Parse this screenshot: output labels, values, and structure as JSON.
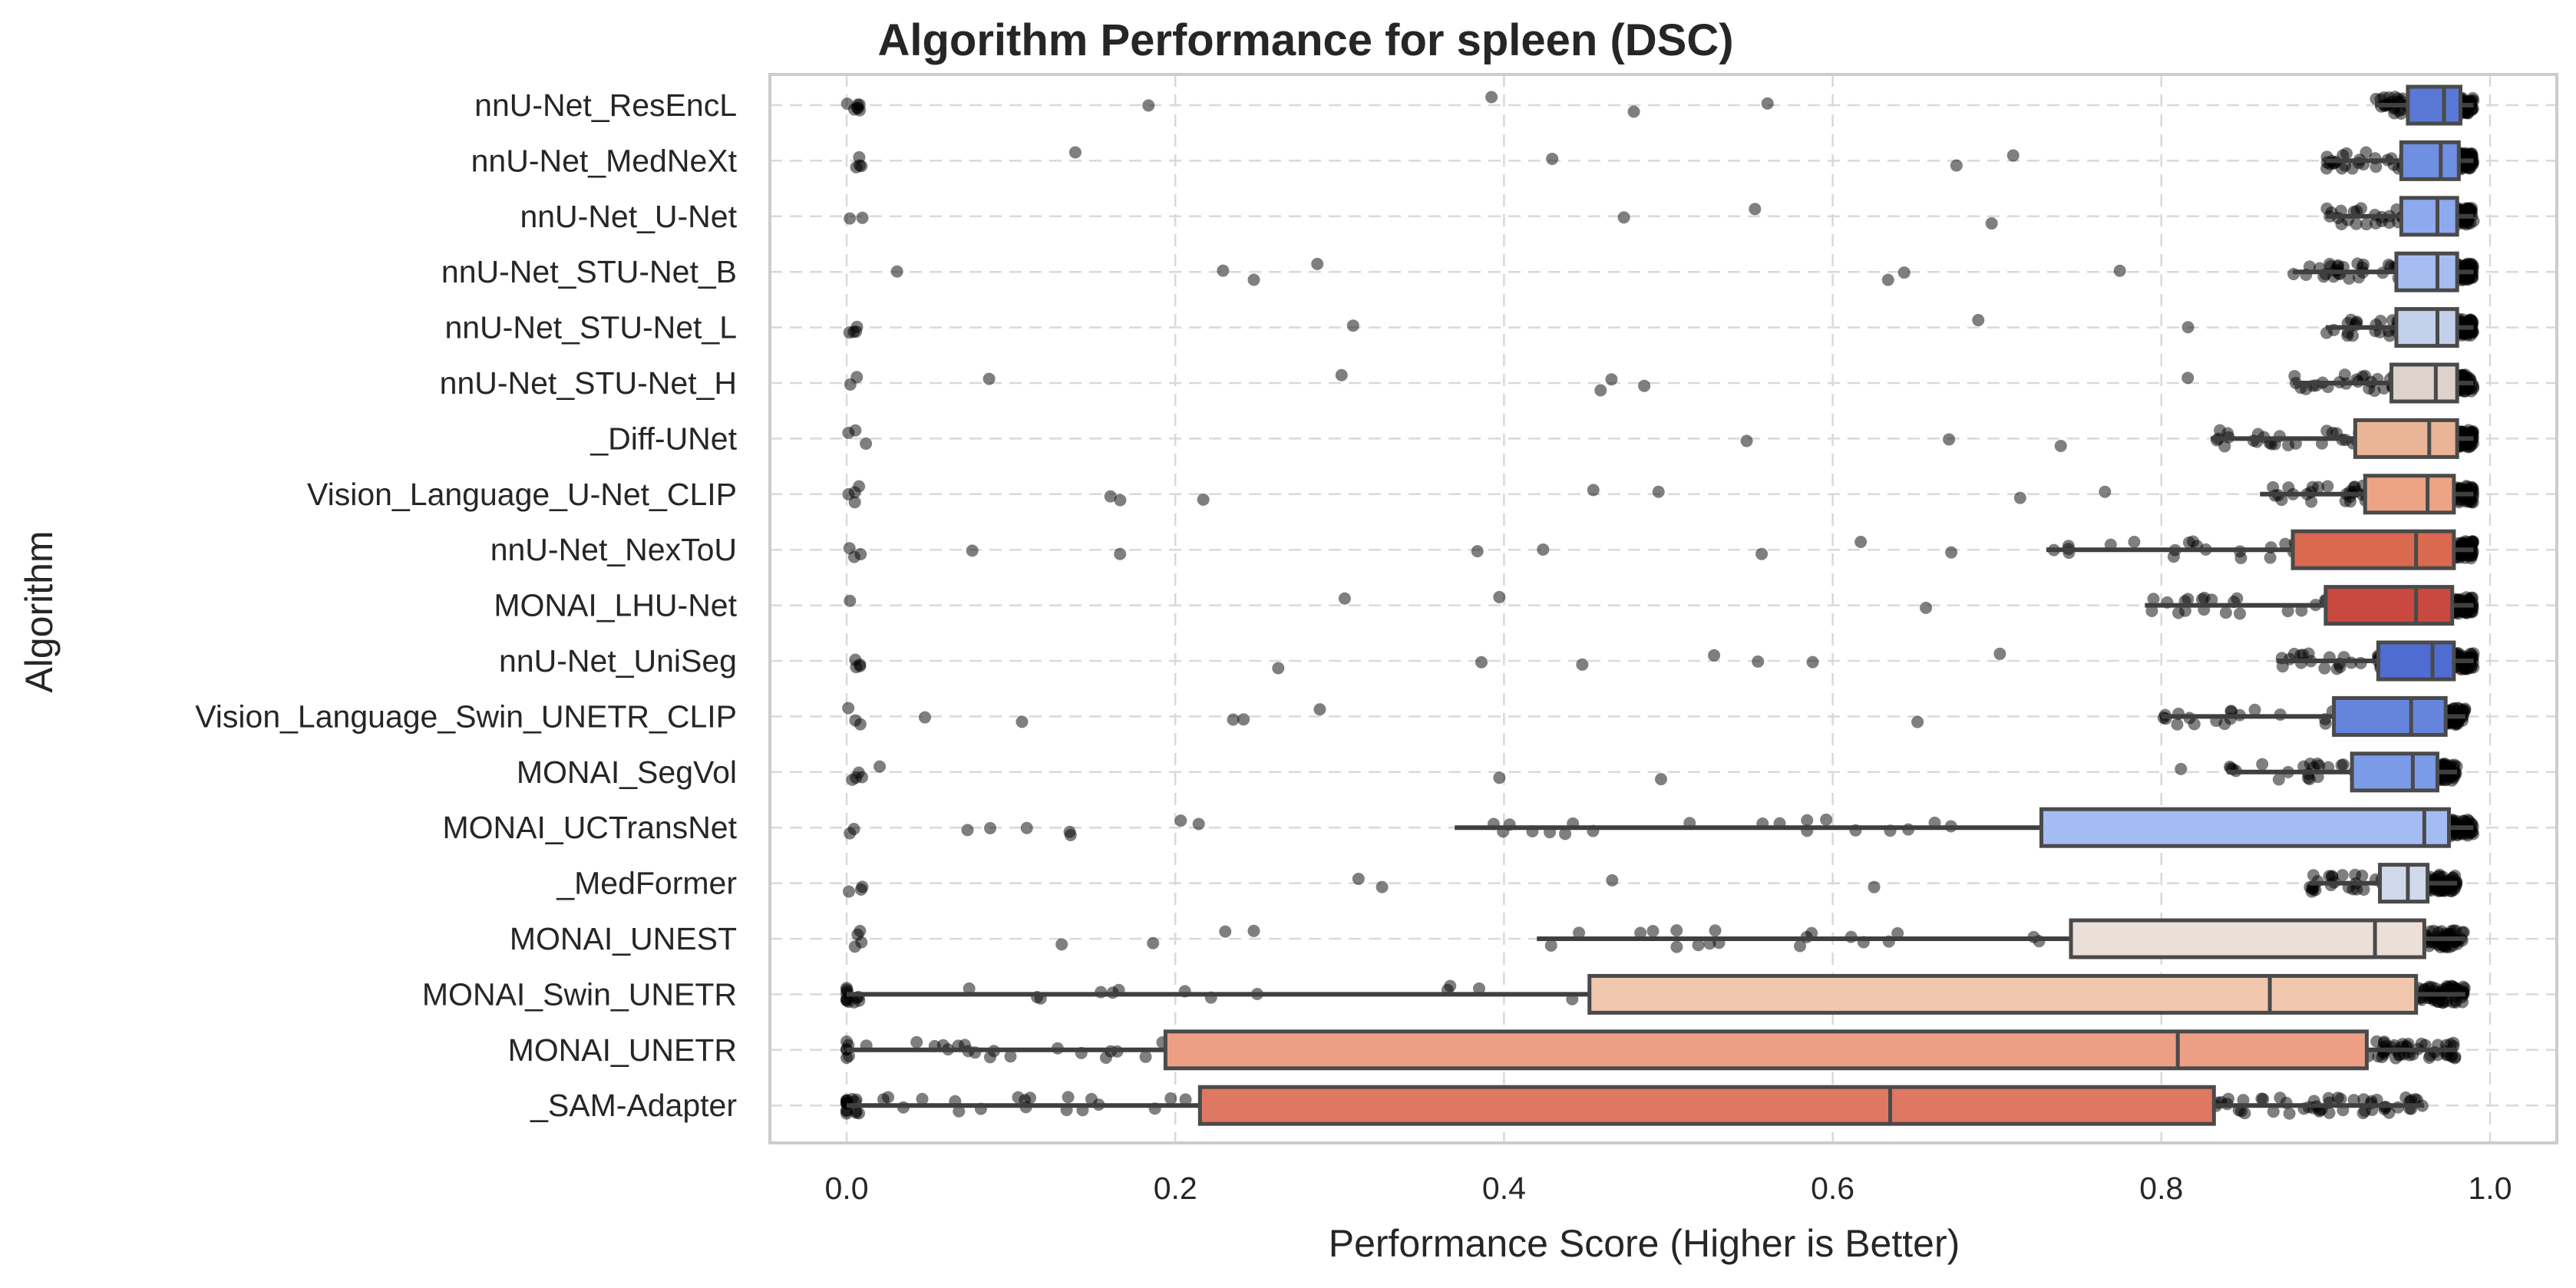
{
  "chart_data": {
    "type": "box",
    "title": "Algorithm Performance for spleen (DSC)",
    "xlabel": "Performance Score (Higher is Better)",
    "ylabel": "Algorithm",
    "xlim": [
      -0.05,
      1.04
    ],
    "xticks": [
      "0.0",
      "0.2",
      "0.4",
      "0.6",
      "0.8",
      "1.0"
    ],
    "xtick_values": [
      0.0,
      0.2,
      0.4,
      0.6,
      0.8,
      1.0
    ],
    "grid": true,
    "overlay": "jittered individual case scores (strip plot)",
    "categories": [
      "nnU-Net_ResEncL",
      "nnU-Net_MedNeXt",
      "nnU-Net_U-Net",
      "nnU-Net_STU-Net_B",
      "nnU-Net_STU-Net_L",
      "nnU-Net_STU-Net_H",
      "_Diff-UNet",
      "Vision_Language_U-Net_CLIP",
      "nnU-Net_NexToU",
      "MONAI_LHU-Net",
      "nnU-Net_UniSeg",
      "Vision_Language_Swin_UNETR_CLIP",
      "MONAI_SegVol",
      "MONAI_UCTransNet",
      "_MedFormer",
      "MONAI_UNEST",
      "MONAI_Swin_UNETR",
      "MONAI_UNETR",
      "_SAM-Adapter"
    ],
    "series": [
      {
        "algorithm": "nnU-Net_ResEncL",
        "q1": 0.95,
        "median": 0.972,
        "q3": 0.982,
        "whisker_low": 0.93,
        "whisker_high": 0.99,
        "color": "#5a78d6"
      },
      {
        "algorithm": "nnU-Net_MedNeXt",
        "q1": 0.946,
        "median": 0.97,
        "q3": 0.981,
        "whisker_low": 0.9,
        "whisker_high": 0.99,
        "color": "#6f8fe3"
      },
      {
        "algorithm": "nnU-Net_U-Net",
        "q1": 0.946,
        "median": 0.968,
        "q3": 0.98,
        "whisker_low": 0.9,
        "whisker_high": 0.99,
        "color": "#8eaaee"
      },
      {
        "algorithm": "nnU-Net_STU-Net_B",
        "q1": 0.943,
        "median": 0.968,
        "q3": 0.98,
        "whisker_low": 0.88,
        "whisker_high": 0.99,
        "color": "#a7bdf2"
      },
      {
        "algorithm": "nnU-Net_STU-Net_L",
        "q1": 0.943,
        "median": 0.968,
        "q3": 0.98,
        "whisker_low": 0.9,
        "whisker_high": 0.99,
        "color": "#c3d0ea"
      },
      {
        "algorithm": "nnU-Net_STU-Net_H",
        "q1": 0.94,
        "median": 0.967,
        "q3": 0.98,
        "whisker_low": 0.88,
        "whisker_high": 0.99,
        "color": "#ddd3cc"
      },
      {
        "algorithm": "_Diff-UNet",
        "q1": 0.918,
        "median": 0.963,
        "q3": 0.98,
        "whisker_low": 0.83,
        "whisker_high": 0.99,
        "color": "#eab597"
      },
      {
        "algorithm": "Vision_Language_U-Net_CLIP",
        "q1": 0.924,
        "median": 0.962,
        "q3": 0.978,
        "whisker_low": 0.86,
        "whisker_high": 0.99,
        "color": "#eda485"
      },
      {
        "algorithm": "nnU-Net_NexToU",
        "q1": 0.88,
        "median": 0.955,
        "q3": 0.978,
        "whisker_low": 0.73,
        "whisker_high": 0.99,
        "color": "#d9694f"
      },
      {
        "algorithm": "MONAI_LHU-Net",
        "q1": 0.9,
        "median": 0.955,
        "q3": 0.977,
        "whisker_low": 0.79,
        "whisker_high": 0.99,
        "color": "#c9483f"
      },
      {
        "algorithm": "nnU-Net_UniSeg",
        "q1": 0.932,
        "median": 0.965,
        "q3": 0.978,
        "whisker_low": 0.87,
        "whisker_high": 0.99,
        "color": "#4f6cd2"
      },
      {
        "algorithm": "Vision_Language_Swin_UNETR_CLIP",
        "q1": 0.905,
        "median": 0.952,
        "q3": 0.973,
        "whisker_low": 0.8,
        "whisker_high": 0.985,
        "color": "#6585dd"
      },
      {
        "algorithm": "MONAI_SegVol",
        "q1": 0.916,
        "median": 0.953,
        "q3": 0.968,
        "whisker_low": 0.84,
        "whisker_high": 0.98,
        "color": "#7b9be8"
      },
      {
        "algorithm": "MONAI_UCTransNet",
        "q1": 0.727,
        "median": 0.96,
        "q3": 0.975,
        "whisker_low": 0.37,
        "whisker_high": 0.99,
        "color": "#a4bcf4"
      },
      {
        "algorithm": "_MedFormer",
        "q1": 0.933,
        "median": 0.95,
        "q3": 0.962,
        "whisker_low": 0.89,
        "whisker_high": 0.98,
        "color": "#d0d9ec"
      },
      {
        "algorithm": "MONAI_UNEST",
        "q1": 0.745,
        "median": 0.93,
        "q3": 0.96,
        "whisker_low": 0.42,
        "whisker_high": 0.985,
        "color": "#eae0d8"
      },
      {
        "algorithm": "MONAI_Swin_UNETR",
        "q1": 0.452,
        "median": 0.866,
        "q3": 0.955,
        "whisker_low": 0.0,
        "whisker_high": 0.985,
        "color": "#f1c7ae"
      },
      {
        "algorithm": "MONAI_UNETR",
        "q1": 0.194,
        "median": 0.81,
        "q3": 0.925,
        "whisker_low": 0.0,
        "whisker_high": 0.98,
        "color": "#ec9f85"
      },
      {
        "algorithm": "_SAM-Adapter",
        "q1": 0.215,
        "median": 0.635,
        "q3": 0.832,
        "whisker_low": 0.0,
        "whisker_high": 0.96,
        "color": "#df7862"
      }
    ]
  }
}
